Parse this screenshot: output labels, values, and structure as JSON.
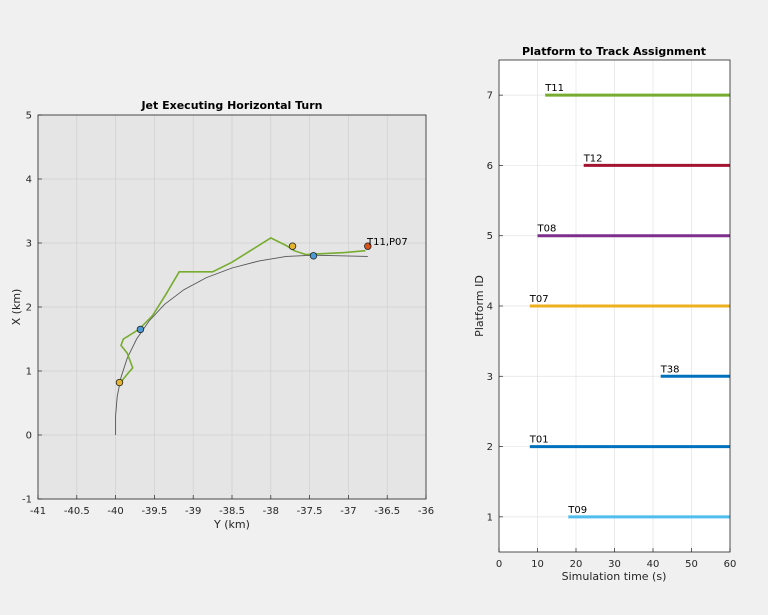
{
  "chart_data": [
    {
      "type": "scatter",
      "title": "Jet Executing Horizontal Turn",
      "xlabel": "Y (km)",
      "ylabel": "X (km)",
      "xlim": [
        -41,
        -36
      ],
      "ylim": [
        -1,
        5
      ],
      "xticks": [
        "-41",
        "-40.5",
        "-40",
        "-39.5",
        "-39",
        "-38.5",
        "-38",
        "-37.5",
        "-37",
        "-36.5",
        "-36"
      ],
      "yticks": [
        "-1",
        "0",
        "1",
        "2",
        "3",
        "4",
        "5"
      ],
      "grid": true,
      "background": "#e5e5e5",
      "truth_color": "#555555",
      "track_color": "#77ac30",
      "truth_path": [
        [
          -40.0,
          0.0
        ],
        [
          -40.0,
          0.3
        ],
        [
          -39.98,
          0.6
        ],
        [
          -39.93,
          0.9
        ],
        [
          -39.85,
          1.2
        ],
        [
          -39.73,
          1.5
        ],
        [
          -39.57,
          1.78
        ],
        [
          -39.37,
          2.04
        ],
        [
          -39.12,
          2.27
        ],
        [
          -38.83,
          2.46
        ],
        [
          -38.5,
          2.61
        ],
        [
          -38.15,
          2.72
        ],
        [
          -37.8,
          2.79
        ],
        [
          -37.45,
          2.81
        ],
        [
          -37.1,
          2.8
        ],
        [
          -36.75,
          2.79
        ]
      ],
      "track_path": [
        [
          -39.95,
          0.8
        ],
        [
          -39.85,
          0.95
        ],
        [
          -39.78,
          1.05
        ],
        [
          -39.85,
          1.28
        ],
        [
          -39.93,
          1.4
        ],
        [
          -39.9,
          1.5
        ],
        [
          -39.7,
          1.65
        ],
        [
          -39.52,
          1.87
        ],
        [
          -39.35,
          2.2
        ],
        [
          -39.18,
          2.55
        ],
        [
          -38.95,
          2.55
        ],
        [
          -38.75,
          2.55
        ],
        [
          -38.5,
          2.7
        ],
        [
          -38.0,
          3.08
        ],
        [
          -37.8,
          2.96
        ],
        [
          -37.7,
          2.88
        ],
        [
          -37.55,
          2.82
        ],
        [
          -37.4,
          2.83
        ],
        [
          -37.05,
          2.85
        ],
        [
          -36.78,
          2.88
        ]
      ],
      "annotations": [
        {
          "text": "T11,P07",
          "x": -36.75,
          "y": 3.0
        }
      ],
      "platforms": [
        {
          "x": -39.68,
          "y": 1.65,
          "color": "#4c9ad6"
        },
        {
          "x": -37.45,
          "y": 2.8,
          "color": "#4c9ad6"
        },
        {
          "x": -39.95,
          "y": 0.82,
          "color": "#e2b431"
        },
        {
          "x": -37.72,
          "y": 2.95,
          "color": "#e2b431"
        },
        {
          "x": -36.75,
          "y": 2.95,
          "color": "#d95319"
        }
      ]
    },
    {
      "type": "bar",
      "title": "Platform to Track Assignment",
      "xlabel": "Simulation time (s)",
      "ylabel": "Platform ID",
      "xlim": [
        0,
        60
      ],
      "ylim": [
        0.5,
        7.5
      ],
      "xticks": [
        "0",
        "10",
        "20",
        "30",
        "40",
        "50",
        "60"
      ],
      "yticks": [
        "1",
        "2",
        "3",
        "4",
        "5",
        "6",
        "7"
      ],
      "grid": true,
      "bars": [
        {
          "label": "T11",
          "platform": 7,
          "start": 12,
          "end": 60,
          "color": "#77ac30"
        },
        {
          "label": "T12",
          "platform": 6,
          "start": 22,
          "end": 60,
          "color": "#a2142f"
        },
        {
          "label": "T08",
          "platform": 5,
          "start": 10,
          "end": 60,
          "color": "#7e2f8e"
        },
        {
          "label": "T07",
          "platform": 4,
          "start": 8,
          "end": 60,
          "color": "#edb120"
        },
        {
          "label": "T38",
          "platform": 3,
          "start": 42,
          "end": 60,
          "color": "#0072bd"
        },
        {
          "label": "T01",
          "platform": 2,
          "start": 8,
          "end": 60,
          "color": "#0072bd"
        },
        {
          "label": "T09",
          "platform": 1,
          "start": 18,
          "end": 60,
          "color": "#4dbeee"
        }
      ]
    }
  ]
}
